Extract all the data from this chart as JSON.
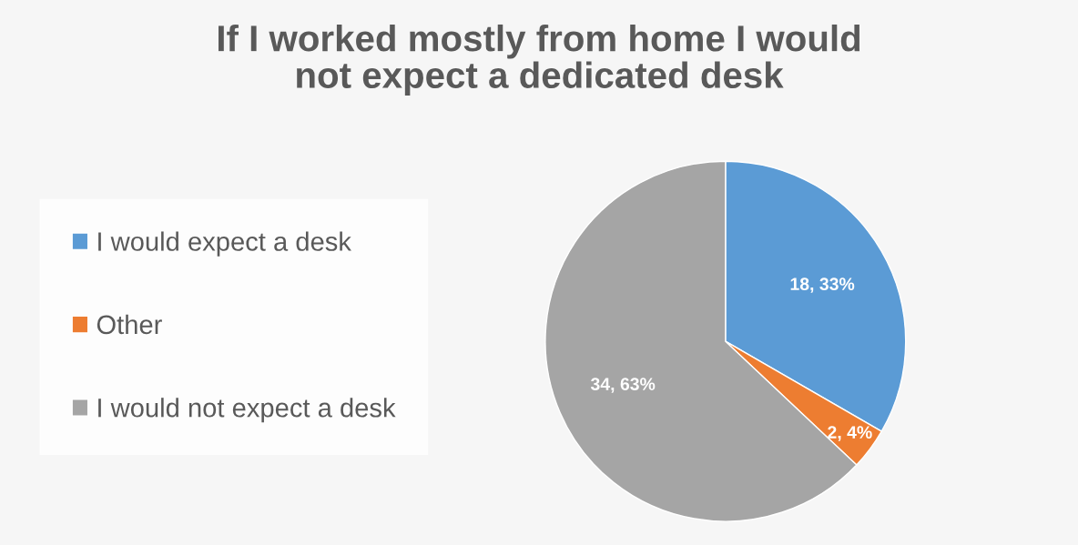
{
  "chart_data": {
    "type": "pie",
    "title": "If I worked mostly from home I would\nnot expect a dedicated desk",
    "categories": [
      "I would expect a desk",
      "Other",
      "I would not expect a desk"
    ],
    "values": [
      18,
      2,
      34
    ],
    "colors": [
      "#5b9bd5",
      "#ed7d31",
      "#a5a5a5"
    ],
    "value_labels": [
      "18, 33%",
      "2, 4%",
      "34, 63%"
    ],
    "legend": "left"
  }
}
